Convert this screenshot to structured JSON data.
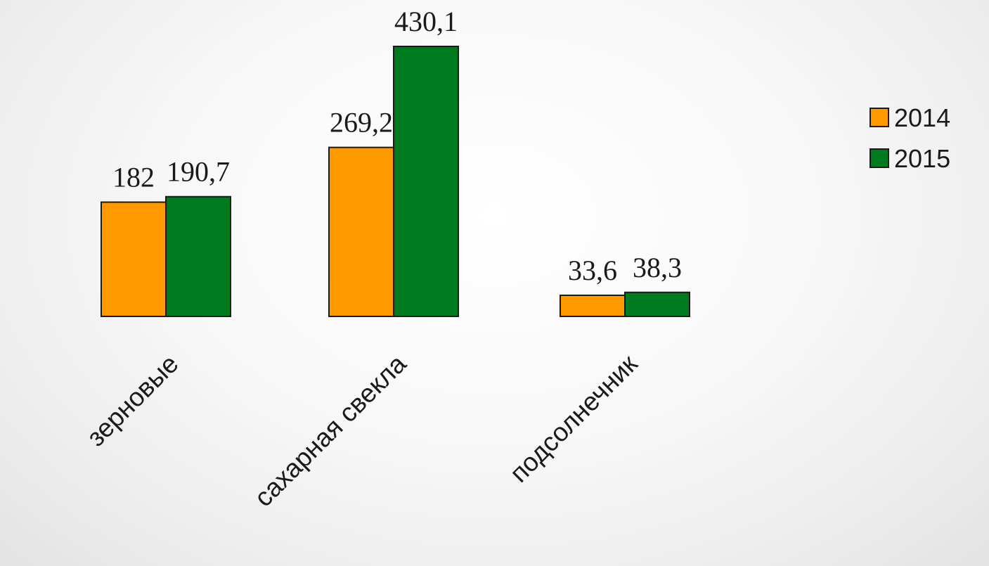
{
  "chart_data": {
    "type": "bar",
    "categories": [
      "зерновые",
      "сахарная свекла",
      "подсолнечник"
    ],
    "series": [
      {
        "name": "2014",
        "color": "#FF9900",
        "values": [
          182,
          269.2,
          33.6
        ],
        "labels": [
          "182",
          "269,2",
          "33,6"
        ]
      },
      {
        "name": "2015",
        "color": "#007A1F",
        "values": [
          190.7,
          430.1,
          38.3
        ],
        "labels": [
          "190,7",
          "430,1",
          "38,3"
        ]
      }
    ],
    "ylim": [
      0,
      430.1
    ],
    "grid": false,
    "legend": "right"
  }
}
